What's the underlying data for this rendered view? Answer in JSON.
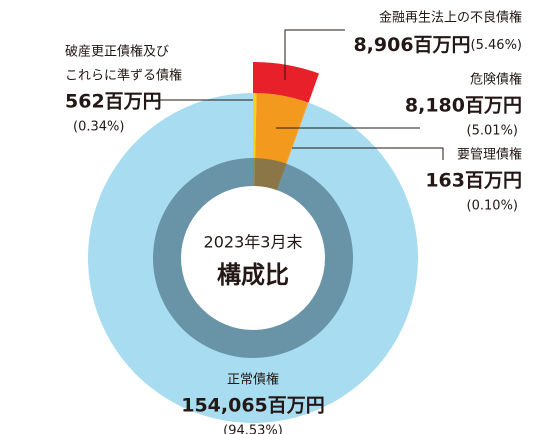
{
  "chart_data": {
    "type": "pie",
    "title": "2023年3月末",
    "subtitle": "構成比",
    "categories": [
      [
        "破産更正債権及び",
        "これらに準ずる債権"
      ],
      "危険債権",
      "要管理債権",
      "正常債権"
    ],
    "values": [
      562,
      8180,
      163,
      154065
    ],
    "value_labels": [
      "562百万円",
      "8,180百万円",
      "163百万円",
      "154,065百万円"
    ],
    "percents": [
      0.34,
      5.01,
      0.1,
      94.53
    ],
    "percent_labels": [
      "(0.34%)",
      "(5.01%)",
      "(0.10%)",
      "(94.53%)"
    ],
    "colors": [
      "#f5d21a",
      "#f39a1e",
      "#f39a1e",
      "#a8dcf0"
    ],
    "total": {
      "name": "金融再生法上の不良債権",
      "value": 8906,
      "value_label": "8,906百万円",
      "percent": 5.46,
      "percent_label": "(5.46%)",
      "color": "#e8202a"
    }
  }
}
